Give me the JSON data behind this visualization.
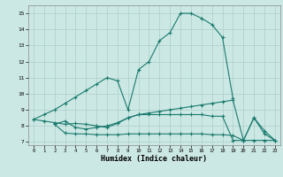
{
  "line1_x": [
    0,
    1,
    2,
    3,
    4,
    5,
    6,
    7,
    8,
    9,
    10,
    11,
    12,
    13,
    14,
    15,
    16,
    17,
    18,
    19
  ],
  "line1_y": [
    8.4,
    8.7,
    9.0,
    9.4,
    9.8,
    10.2,
    10.6,
    11.0,
    10.8,
    9.0,
    11.5,
    12.0,
    13.3,
    13.8,
    15.0,
    15.0,
    14.7,
    14.3,
    13.5,
    9.7
  ],
  "line2_x": [
    0,
    1,
    2,
    3,
    4,
    5,
    6,
    7,
    8,
    9,
    10,
    11,
    12,
    13,
    14,
    15,
    16,
    17,
    18,
    19,
    20,
    21,
    22,
    23
  ],
  "line2_y": [
    8.4,
    8.3,
    8.2,
    8.1,
    8.15,
    8.1,
    8.0,
    7.9,
    8.15,
    8.5,
    8.7,
    8.8,
    8.9,
    9.0,
    9.1,
    9.2,
    9.3,
    9.4,
    9.5,
    9.6,
    7.1,
    8.5,
    7.7,
    7.1
  ],
  "line3_x": [
    2,
    3,
    4,
    5,
    6,
    7,
    8,
    9,
    10,
    11,
    12,
    13,
    14,
    15,
    16,
    17,
    18,
    19,
    20,
    21,
    22,
    23
  ],
  "line3_y": [
    8.1,
    7.55,
    7.5,
    7.5,
    7.45,
    7.45,
    7.45,
    7.5,
    7.5,
    7.5,
    7.5,
    7.5,
    7.5,
    7.5,
    7.5,
    7.45,
    7.45,
    7.4,
    7.1,
    7.1,
    7.1,
    7.1
  ],
  "line4_x": [
    2,
    3,
    4,
    5,
    6,
    7,
    8,
    9,
    10,
    11,
    12,
    13,
    14,
    15,
    16,
    17,
    18,
    19,
    20,
    21,
    22,
    23
  ],
  "line4_y": [
    8.1,
    8.3,
    7.9,
    7.8,
    7.9,
    8.0,
    8.2,
    8.5,
    8.7,
    8.7,
    8.7,
    8.7,
    8.7,
    8.7,
    8.7,
    8.6,
    8.6,
    7.1,
    7.1,
    8.5,
    7.5,
    7.1
  ],
  "color": "#1a7a6e",
  "bg_color": "#cce8e4",
  "grid_color": "#aaceca",
  "xlabel": "Humidex (Indice chaleur)",
  "xlim": [
    -0.5,
    23.5
  ],
  "ylim": [
    6.8,
    15.5
  ],
  "yticks": [
    7,
    8,
    9,
    10,
    11,
    12,
    13,
    14,
    15
  ],
  "xticks": [
    0,
    1,
    2,
    3,
    4,
    5,
    6,
    7,
    8,
    9,
    10,
    11,
    12,
    13,
    14,
    15,
    16,
    17,
    18,
    19,
    20,
    21,
    22,
    23
  ],
  "marker": "+",
  "markersize": 3.5,
  "linewidth": 0.8
}
